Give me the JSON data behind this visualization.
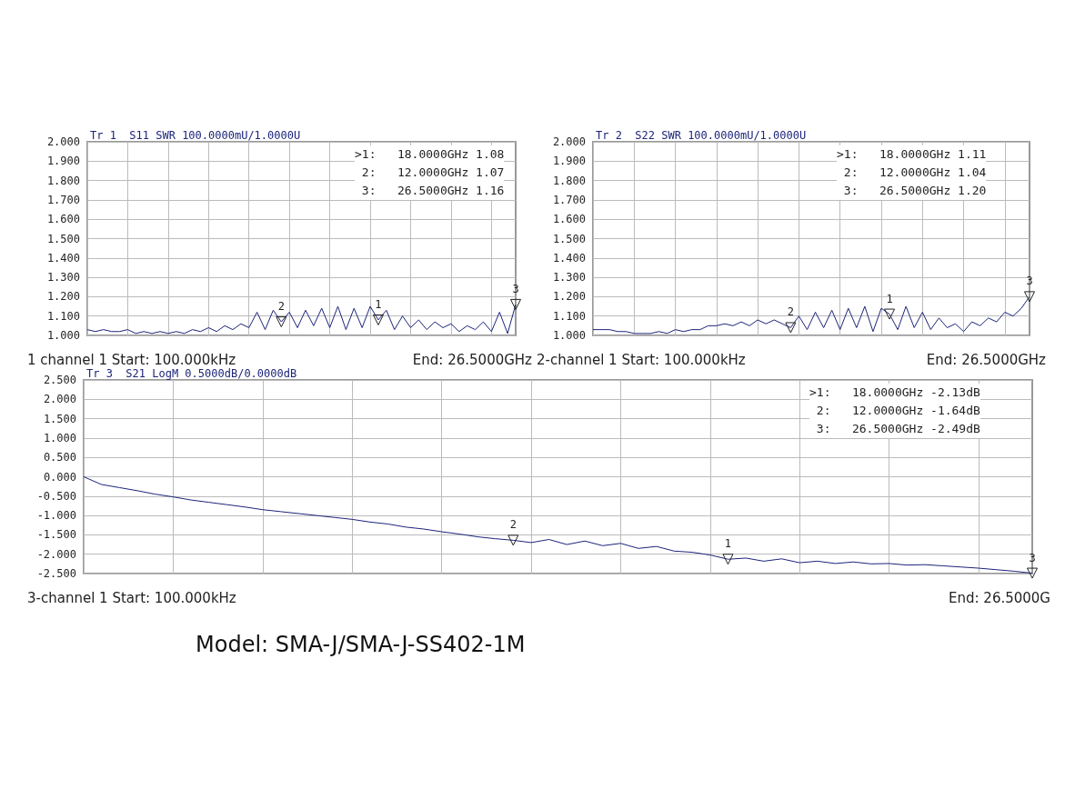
{
  "chart_data": [
    {
      "type": "line",
      "title": "Tr 1  S11 SWR 100.0000mU/1.0000U",
      "categories": [
        null,
        null,
        null,
        null,
        null,
        null,
        null,
        null,
        null,
        null,
        null,
        null,
        null,
        null,
        null,
        null,
        null,
        null,
        null,
        null,
        null,
        null,
        null,
        null,
        null,
        null,
        null,
        null,
        null,
        null,
        null,
        null,
        null,
        null,
        null,
        null,
        null,
        null,
        null,
        null,
        null,
        null,
        null,
        null,
        null,
        null,
        null,
        null,
        null,
        null,
        null,
        null,
        null,
        null
      ],
      "series": [
        {
          "color": "#1c2479",
          "values": [
            1.03,
            1.02,
            1.03,
            1.02,
            1.02,
            1.03,
            1.01,
            1.02,
            1.01,
            1.02,
            1.01,
            1.02,
            1.01,
            1.03,
            1.02,
            1.04,
            1.02,
            1.05,
            1.03,
            1.06,
            1.04,
            1.12,
            1.03,
            1.13,
            1.07,
            1.12,
            1.04,
            1.13,
            1.05,
            1.14,
            1.04,
            1.15,
            1.03,
            1.14,
            1.04,
            1.15,
            1.08,
            1.13,
            1.03,
            1.1,
            1.04,
            1.08,
            1.03,
            1.07,
            1.04,
            1.06,
            1.02,
            1.05,
            1.03,
            1.07,
            1.02,
            1.12,
            1.01,
            1.16
          ]
        }
      ],
      "ylim": [
        1,
        2
      ],
      "yticks": [
        {
          "value": 1,
          "label": "1.000"
        },
        {
          "value": 1.1,
          "label": "1.100"
        },
        {
          "value": 1.2,
          "label": "1.200"
        },
        {
          "value": 1.3,
          "label": "1.300"
        },
        {
          "value": 1.4,
          "label": "1.400"
        },
        {
          "value": 1.5,
          "label": "1.500"
        },
        {
          "value": 1.6,
          "label": "1.600"
        },
        {
          "value": 1.7,
          "label": "1.700"
        },
        {
          "value": 1.8,
          "label": "1.800"
        },
        {
          "value": 1.9,
          "label": "1.900"
        },
        {
          "value": 2,
          "label": "2.000"
        }
      ],
      "grid": true,
      "marker": "none",
      "line_style": "solid",
      "annotations": [
        ">1:   18.0000GHz 1.08",
        " 2:   12.0000GHz 1.07",
        " 3:   26.5000GHz 1.16",
        {
          "text": "1",
          "y": 1.08
        },
        {
          "text": "2",
          "y": 1.07
        },
        {
          "text": "3",
          "y": 1.16
        },
        "1 channel 1",
        "Start: 100.000kHz",
        "End: 26.5000GHz"
      ]
    },
    {
      "type": "line",
      "title": "Tr 2  S22 SWR 100.0000mU/1.0000U",
      "categories": [
        null,
        null,
        null,
        null,
        null,
        null,
        null,
        null,
        null,
        null,
        null,
        null,
        null,
        null,
        null,
        null,
        null,
        null,
        null,
        null,
        null,
        null,
        null,
        null,
        null,
        null,
        null,
        null,
        null,
        null,
        null,
        null,
        null,
        null,
        null,
        null,
        null,
        null,
        null,
        null,
        null,
        null,
        null,
        null,
        null,
        null,
        null,
        null,
        null,
        null,
        null,
        null,
        null,
        null
      ],
      "series": [
        {
          "color": "#1c2479",
          "values": [
            1.03,
            1.03,
            1.03,
            1.02,
            1.02,
            1.01,
            1.01,
            1.01,
            1.02,
            1.01,
            1.03,
            1.02,
            1.03,
            1.03,
            1.05,
            1.05,
            1.06,
            1.05,
            1.07,
            1.05,
            1.08,
            1.06,
            1.08,
            1.06,
            1.04,
            1.1,
            1.03,
            1.12,
            1.04,
            1.13,
            1.03,
            1.14,
            1.04,
            1.15,
            1.02,
            1.14,
            1.11,
            1.03,
            1.15,
            1.04,
            1.12,
            1.03,
            1.09,
            1.04,
            1.06,
            1.02,
            1.07,
            1.05,
            1.09,
            1.07,
            1.12,
            1.1,
            1.14,
            1.2
          ]
        }
      ],
      "ylim": [
        1,
        2
      ],
      "yticks": [
        {
          "value": 1,
          "label": "1.000"
        },
        {
          "value": 1.1,
          "label": "1.100"
        },
        {
          "value": 1.2,
          "label": "1.200"
        },
        {
          "value": 1.3,
          "label": "1.300"
        },
        {
          "value": 1.4,
          "label": "1.400"
        },
        {
          "value": 1.5,
          "label": "1.500"
        },
        {
          "value": 1.6,
          "label": "1.600"
        },
        {
          "value": 1.7,
          "label": "1.700"
        },
        {
          "value": 1.8,
          "label": "1.800"
        },
        {
          "value": 1.9,
          "label": "1.900"
        },
        {
          "value": 2,
          "label": "2.000"
        }
      ],
      "grid": true,
      "marker": "none",
      "line_style": "solid",
      "annotations": [
        ">1:   18.0000GHz 1.11",
        " 2:   12.0000GHz 1.04",
        " 3:   26.5000GHz 1.20",
        {
          "text": "1",
          "y": 1.11
        },
        {
          "text": "2",
          "y": 1.04
        },
        {
          "text": "3",
          "y": 1.2
        },
        "2-channel 1",
        "Start: 100.000kHz",
        "End: 26.5000GHz"
      ]
    },
    {
      "type": "line",
      "title": "Tr 3  S21 LogM 0.5000dB/0.0000dB",
      "categories": [
        null,
        null,
        null,
        null,
        null,
        null,
        null,
        null,
        null,
        null,
        null,
        null,
        null,
        null,
        null,
        null,
        null,
        null,
        null,
        null,
        null,
        null,
        null,
        null,
        null,
        null,
        null,
        null,
        null,
        null,
        null,
        null,
        null,
        null,
        null,
        null,
        null,
        null,
        null,
        null,
        null,
        null,
        null,
        null,
        null,
        null,
        null,
        null,
        null,
        null,
        null,
        null,
        null,
        null
      ],
      "series": [
        {
          "color": "#1c2479",
          "values": [
            0,
            -0.2,
            -0.28,
            -0.36,
            -0.45,
            -0.52,
            -0.6,
            -0.66,
            -0.72,
            -0.78,
            -0.85,
            -0.9,
            -0.95,
            -1,
            -1.05,
            -1.1,
            -1.17,
            -1.22,
            -1.3,
            -1.35,
            -1.42,
            -1.48,
            -1.55,
            -1.6,
            -1.64,
            -1.7,
            -1.62,
            -1.75,
            -1.66,
            -1.78,
            -1.72,
            -1.85,
            -1.8,
            -1.92,
            -1.95,
            -2.02,
            -2.13,
            -2.1,
            -2.18,
            -2.12,
            -2.22,
            -2.18,
            -2.24,
            -2.2,
            -2.25,
            -2.24,
            -2.28,
            -2.27,
            -2.3,
            -2.33,
            -2.36,
            -2.4,
            -2.44,
            -2.49
          ]
        }
      ],
      "ylim": [
        -2.5,
        2.5
      ],
      "yticks": [
        {
          "value": -2.5,
          "label": "-2.500"
        },
        {
          "value": -2,
          "label": "-2.000"
        },
        {
          "value": -1.5,
          "label": "-1.500"
        },
        {
          "value": -1,
          "label": "-1.000"
        },
        {
          "value": -0.5,
          "label": "-0.500"
        },
        {
          "value": 0,
          "label": "0.000"
        },
        {
          "value": 0.5,
          "label": "0.500"
        },
        {
          "value": 1,
          "label": "1.000"
        },
        {
          "value": 1.5,
          "label": "1.500"
        },
        {
          "value": 2,
          "label": "2.000"
        },
        {
          "value": 2.5,
          "label": "2.500"
        }
      ],
      "grid": true,
      "marker": "none",
      "line_style": "solid",
      "annotations": [
        ">1:   18.0000GHz -2.13dB",
        " 2:   12.0000GHz -1.64dB",
        " 3:   26.5000GHz -2.49dB",
        {
          "text": "1",
          "y": -2.13
        },
        {
          "text": "2",
          "y": -1.64
        },
        {
          "text": "3",
          "y": -2.49
        },
        "3-channel 1",
        "Start: 100.000kHz",
        "End: 26.5000G",
        "Model: SMA-J/SMA-J-SS402-1M"
      ]
    }
  ]
}
